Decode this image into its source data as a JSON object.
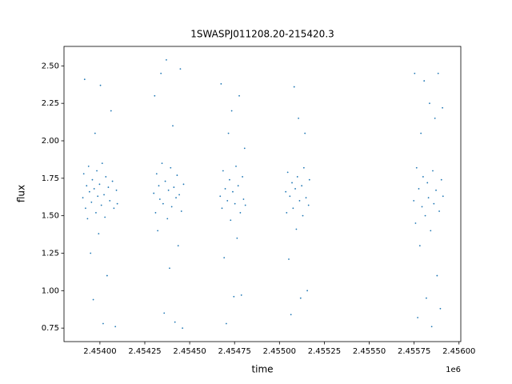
{
  "chart_data": {
    "type": "scatter",
    "title": "1SWASPJ011208.20-215420.3",
    "x_label": "time",
    "y_label": "flux",
    "x_offset_label": "1e6",
    "color": "#1f77b4",
    "xlim": [
      2453800,
      2456010
    ],
    "ylim": [
      0.66,
      2.63
    ],
    "xticks": [
      {
        "value": 2454000,
        "label": "2.45400"
      },
      {
        "value": 2454250,
        "label": "2.45425"
      },
      {
        "value": 2454500,
        "label": "2.45450"
      },
      {
        "value": 2454750,
        "label": "2.45475"
      },
      {
        "value": 2455000,
        "label": "2.45500"
      },
      {
        "value": 2455250,
        "label": "2.45525"
      },
      {
        "value": 2455500,
        "label": "2.45550"
      },
      {
        "value": 2455750,
        "label": "2.45575"
      },
      {
        "value": 2456000,
        "label": "2.45600"
      }
    ],
    "yticks": [
      0.75,
      {
        "value": 1.0,
        "label": "1.00"
      },
      1.25,
      {
        "value": 1.5,
        "label": "1.50"
      },
      1.75,
      {
        "value": 2.0,
        "label": "2.00"
      },
      2.25,
      {
        "value": 2.5,
        "label": "2.50"
      }
    ],
    "x": [
      2453905,
      2453910,
      2453915,
      2453920,
      2453926,
      2453931,
      2453937,
      2453942,
      2453948,
      2453953,
      2453958,
      2453963,
      2453968,
      2453973,
      2453978,
      2453983,
      2453988,
      2453993,
      2453998,
      2454003,
      2454008,
      2454013,
      2454018,
      2454023,
      2454028,
      2454033,
      2454040,
      2454047,
      2454055,
      2454062,
      2454070,
      2454078,
      2454086,
      2454092,
      2454097,
      2454300,
      2454305,
      2454310,
      2454316,
      2454322,
      2454328,
      2454334,
      2454340,
      2454346,
      2454352,
      2454358,
      2454364,
      2454370,
      2454376,
      2454382,
      2454388,
      2454394,
      2454400,
      2454406,
      2454412,
      2454418,
      2454424,
      2454430,
      2454436,
      2454442,
      2454448,
      2454454,
      2454460,
      2454466,
      2454670,
      2454675,
      2454680,
      2454686,
      2454692,
      2454698,
      2454704,
      2454710,
      2454716,
      2454722,
      2454728,
      2454734,
      2454740,
      2454746,
      2454752,
      2454758,
      2454764,
      2454770,
      2454776,
      2454782,
      2454788,
      2454794,
      2454800,
      2454806,
      2454810,
      2455035,
      2455040,
      2455046,
      2455052,
      2455058,
      2455064,
      2455070,
      2455076,
      2455082,
      2455088,
      2455094,
      2455100,
      2455106,
      2455112,
      2455118,
      2455124,
      2455130,
      2455136,
      2455142,
      2455148,
      2455155,
      2455162,
      2455167,
      2455748,
      2455753,
      2455758,
      2455764,
      2455770,
      2455776,
      2455782,
      2455788,
      2455794,
      2455800,
      2455806,
      2455812,
      2455818,
      2455824,
      2455830,
      2455836,
      2455842,
      2455848,
      2455854,
      2455860,
      2455866,
      2455872,
      2455878,
      2455884,
      2455890,
      2455896,
      2455902,
      2455908,
      2455911
    ],
    "values": [
      1.62,
      1.78,
      2.41,
      1.55,
      1.7,
      1.48,
      1.83,
      1.66,
      1.25,
      1.59,
      1.74,
      0.94,
      1.68,
      2.05,
      1.52,
      1.8,
      1.63,
      1.38,
      1.71,
      2.37,
      1.57,
      1.85,
      0.78,
      1.64,
      1.49,
      1.76,
      1.1,
      1.69,
      1.6,
      2.2,
      1.73,
      1.55,
      0.76,
      1.67,
      1.58,
      1.65,
      2.3,
      1.52,
      1.78,
      1.4,
      1.7,
      1.61,
      2.45,
      1.85,
      1.58,
      0.85,
      1.73,
      2.54,
      1.48,
      1.67,
      1.15,
      1.82,
      1.56,
      2.1,
      1.69,
      0.79,
      1.62,
      1.77,
      1.3,
      1.64,
      2.48,
      1.53,
      0.75,
      1.71,
      1.63,
      2.38,
      1.55,
      1.8,
      1.22,
      1.68,
      0.78,
      1.6,
      2.05,
      1.74,
      1.47,
      2.2,
      1.66,
      0.96,
      1.58,
      1.83,
      1.35,
      1.7,
      2.3,
      1.52,
      0.97,
      1.76,
      1.61,
      1.95,
      1.57,
      1.66,
      1.52,
      1.79,
      1.21,
      1.63,
      0.84,
      1.72,
      1.55,
      2.36,
      1.68,
      1.41,
      1.76,
      2.15,
      1.6,
      0.95,
      1.7,
      1.5,
      1.82,
      2.05,
      1.62,
      1.0,
      1.57,
      1.74,
      1.6,
      2.45,
      1.45,
      1.82,
      0.82,
      1.68,
      1.3,
      2.05,
      1.56,
      1.76,
      2.4,
      1.5,
      0.95,
      1.72,
      1.62,
      2.25,
      1.4,
      0.76,
      1.8,
      1.58,
      2.15,
      1.67,
      1.1,
      2.45,
      1.53,
      0.88,
      1.74,
      2.22,
      1.63
    ]
  }
}
